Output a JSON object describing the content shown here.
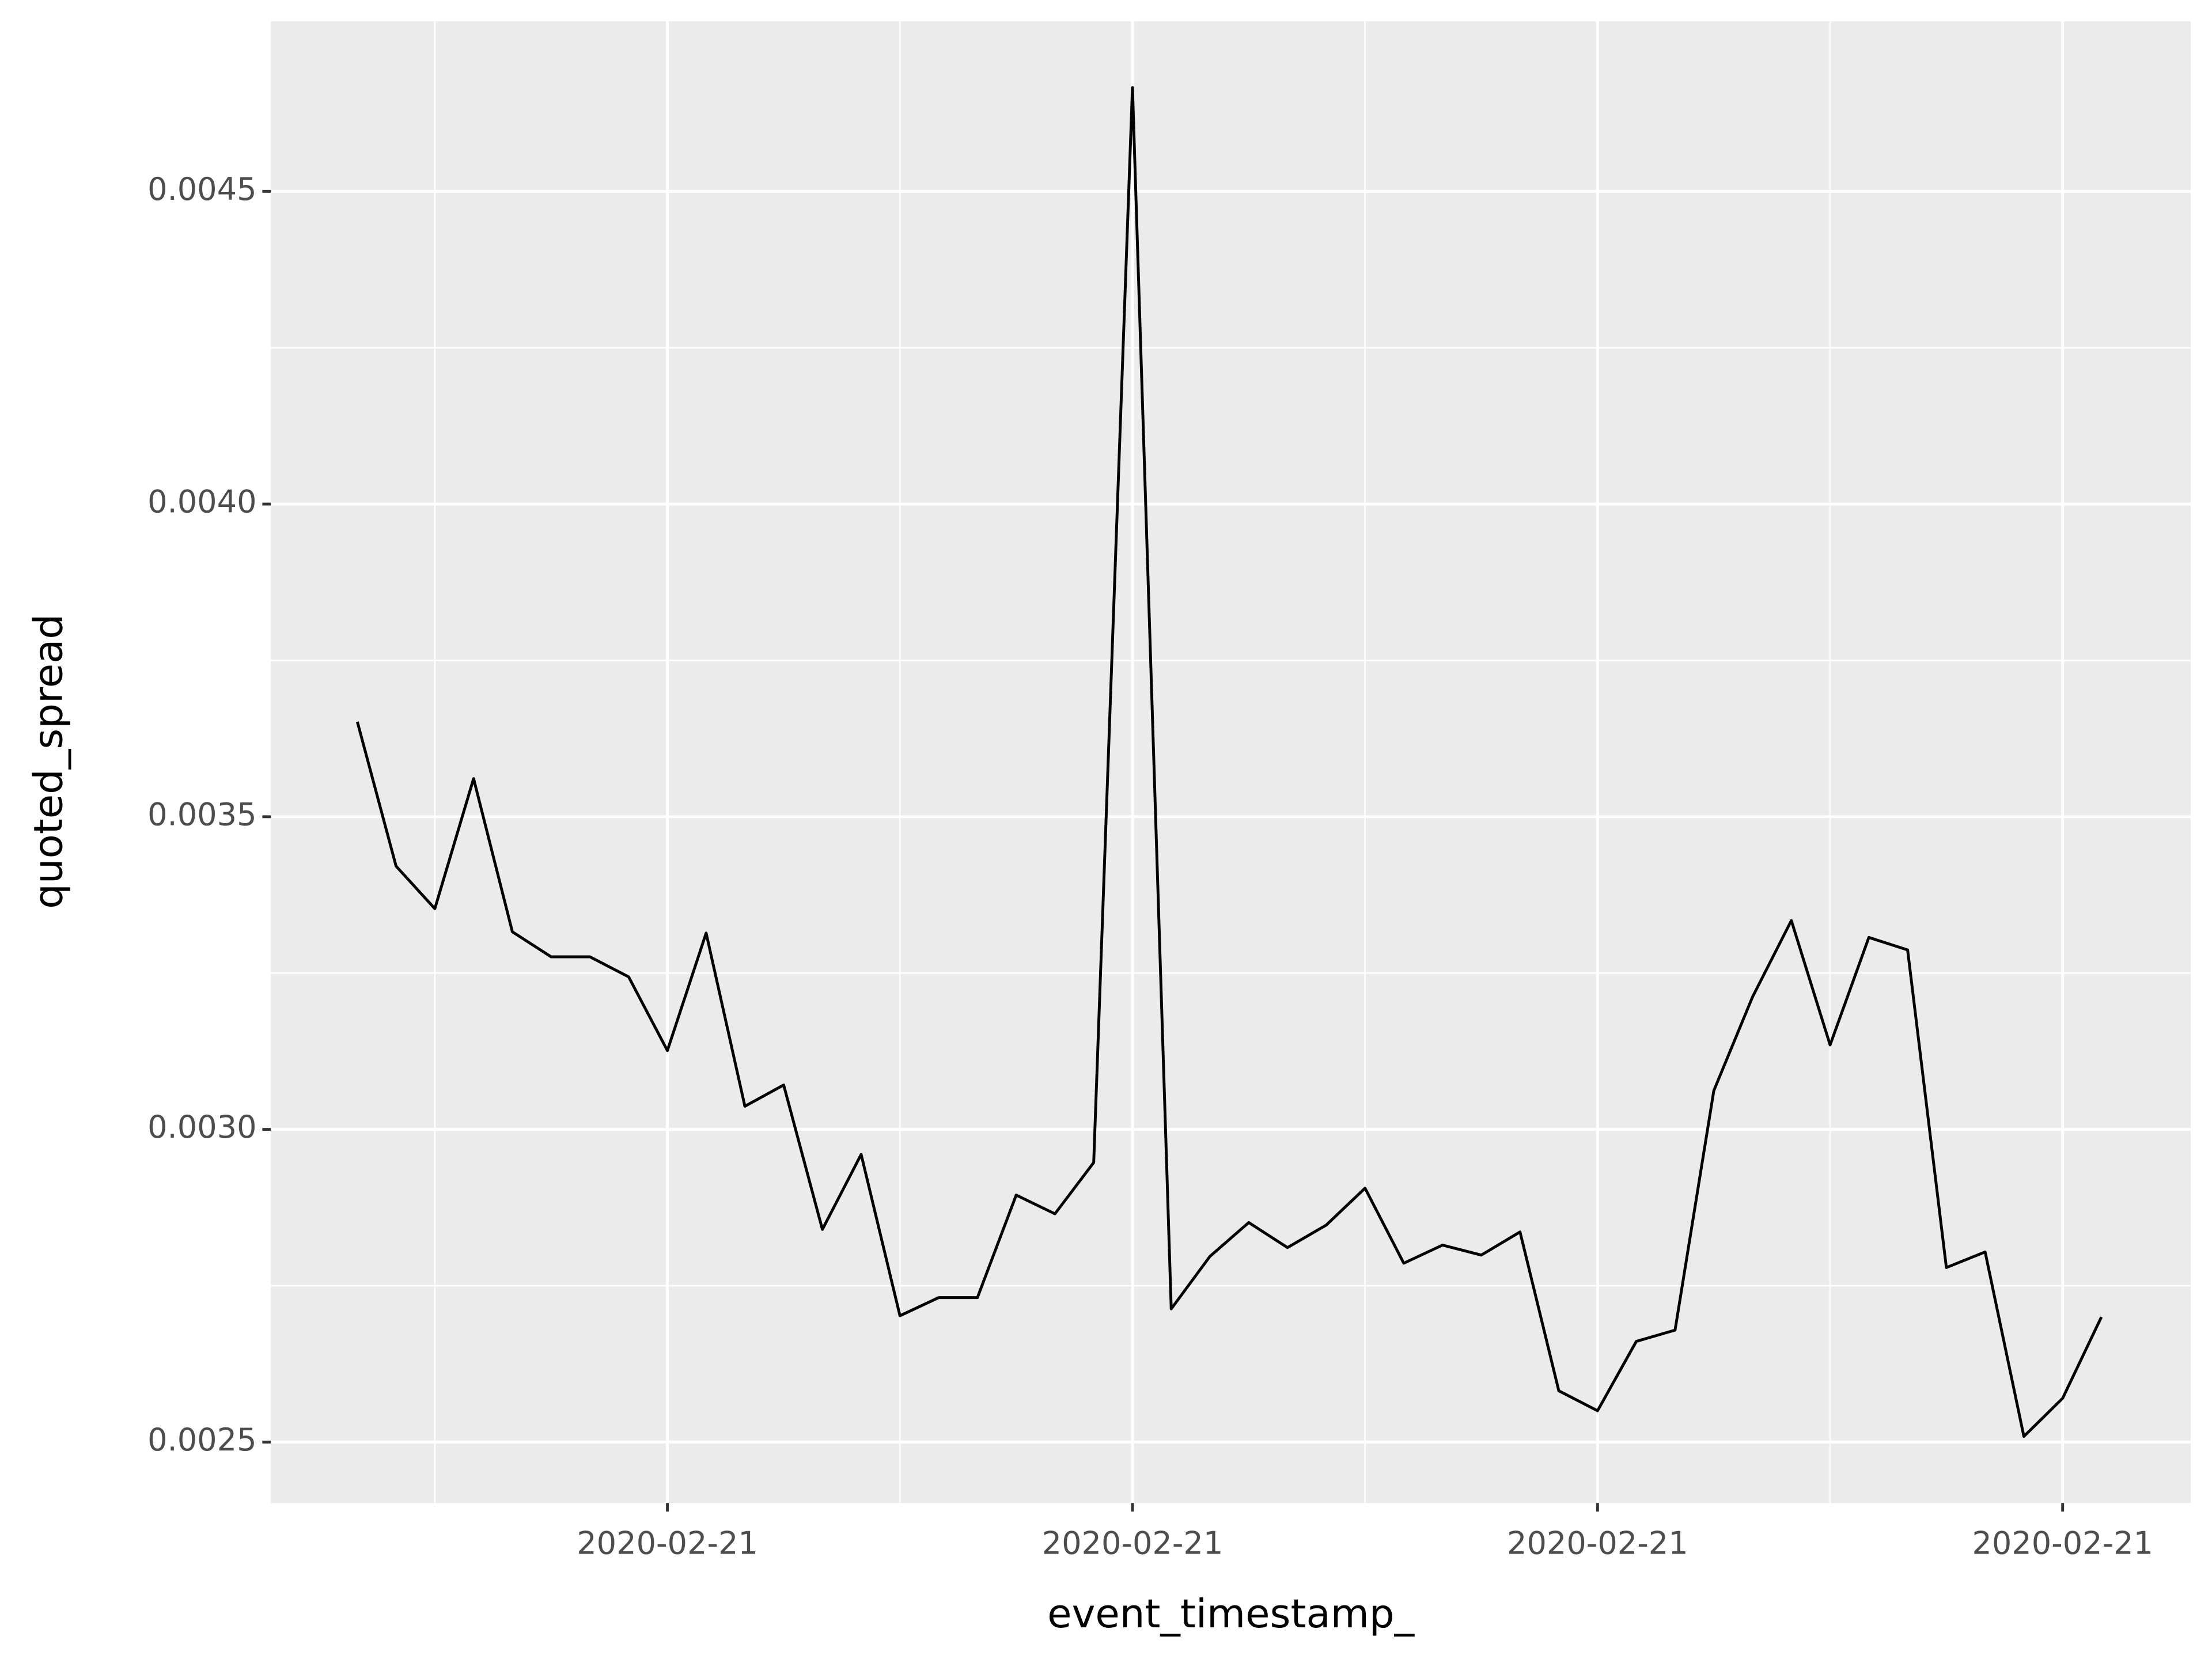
{
  "chart_data": {
    "type": "line",
    "x_label": "event_timestamp_",
    "y_label": "quoted_spread",
    "categories": [
      null,
      null,
      null,
      null,
      null,
      null,
      null,
      null,
      "2020-02-21",
      null,
      null,
      null,
      null,
      null,
      null,
      null,
      null,
      null,
      null,
      null,
      "2020-02-21",
      null,
      null,
      null,
      null,
      null,
      null,
      null,
      null,
      null,
      null,
      null,
      "2020-02-21",
      null,
      null,
      null,
      null,
      null,
      null,
      null,
      null,
      null,
      null,
      null,
      "2020-02-21",
      null
    ],
    "series": [
      {
        "name": "quoted_spread",
        "color": "#000000",
        "values": [
          0.003652,
          0.003421,
          0.003353,
          0.003561,
          0.003316,
          0.003276,
          0.003276,
          0.003244,
          0.003126,
          0.003314,
          0.003037,
          0.003071,
          0.00284,
          0.00296,
          0.002702,
          0.002731,
          0.002731,
          0.002895,
          0.002865,
          0.002947,
          0.004666,
          0.002713,
          0.002797,
          0.002851,
          0.002811,
          0.002847,
          0.002906,
          0.002786,
          0.002815,
          0.002799,
          0.002836,
          0.002582,
          0.00255,
          0.002661,
          0.002679,
          0.003062,
          0.003212,
          0.003334,
          0.003135,
          0.003307,
          0.003287,
          0.002779,
          0.002804,
          0.002509,
          0.00257,
          0.0027
        ]
      }
    ],
    "ylim": [
      0.0024025,
      0.0047721
    ],
    "yticks": [
      0.0025,
      {
        "value": 0.003,
        "label": "0.0030"
      },
      0.0035,
      {
        "value": 0.004,
        "label": "0.0040"
      },
      0.0045
    ],
    "grid": true
  }
}
